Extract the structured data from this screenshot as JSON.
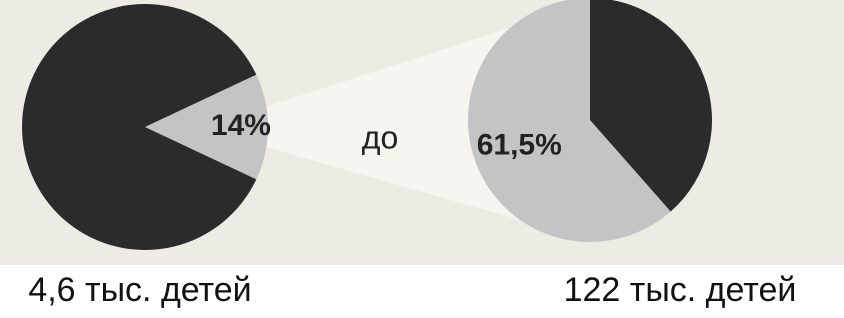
{
  "chart_data": [
    {
      "type": "pie",
      "values": [
        14,
        86
      ],
      "value_labels": [
        "14%",
        null
      ],
      "colors": [
        "#c4c4c4",
        "#2b2b2b"
      ],
      "caption": "4,6 тыс. детей"
    },
    {
      "type": "pie",
      "values": [
        61.5,
        38.5
      ],
      "value_labels": [
        "61,5%",
        null
      ],
      "colors": [
        "#c4c4c4",
        "#2b2b2b"
      ],
      "caption": "122 тыс. детей"
    }
  ],
  "annotation": "до"
}
